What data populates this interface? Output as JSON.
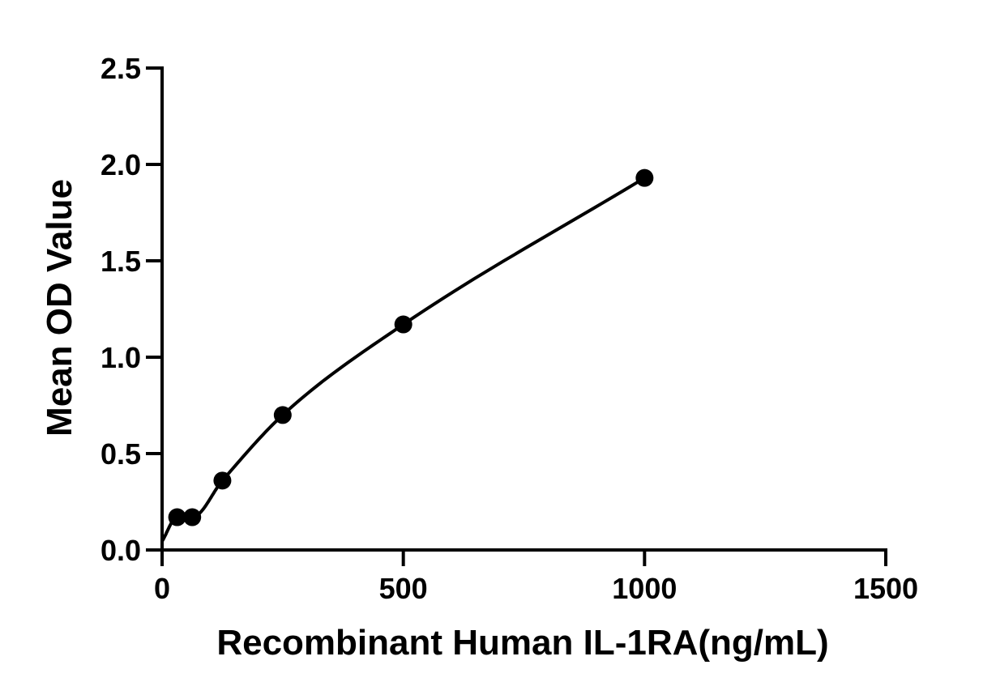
{
  "chart_data": {
    "type": "scatter",
    "title": "",
    "xlabel": "Recombinant Human IL-1RA(ng/mL)",
    "ylabel": "Mean OD Value",
    "xlim": [
      0,
      1500
    ],
    "ylim": [
      0,
      2.5
    ],
    "x_ticks": [
      "0",
      "500",
      "1000",
      "1500"
    ],
    "y_ticks": [
      "0.0",
      "0.5",
      "1.0",
      "1.5",
      "2.0",
      "2.5"
    ],
    "grid": false,
    "legend": "none",
    "series": [
      {
        "points": [
          {
            "x": 31.25,
            "y": 0.17
          },
          {
            "x": 62.5,
            "y": 0.17
          },
          {
            "x": 125,
            "y": 0.36
          },
          {
            "x": 250,
            "y": 0.7
          },
          {
            "x": 500,
            "y": 1.17
          },
          {
            "x": 1000,
            "y": 1.93
          }
        ],
        "fit_curve": true
      }
    ],
    "colors": {
      "marks": "#000000",
      "background": "#ffffff"
    }
  }
}
